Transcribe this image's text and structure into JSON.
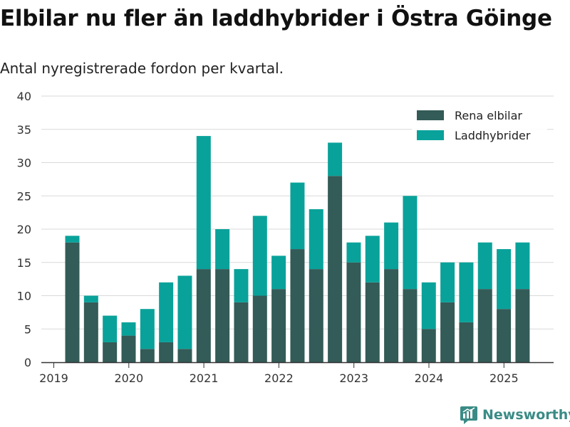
{
  "header": {
    "title": "Elbilar nu fler än laddhybrider i Östra Göinge",
    "subtitle": "Antal nyregistrerade fordon per kvartal."
  },
  "brand": {
    "name": "Newsworthy",
    "color": "#3a8b86"
  },
  "chart_data": {
    "type": "bar",
    "stacked": true,
    "categories": [
      "2019 Q2",
      "2019 Q3",
      "2019 Q4",
      "2020 Q1",
      "2020 Q2",
      "2020 Q3",
      "2020 Q4",
      "2021 Q1",
      "2021 Q2",
      "2021 Q3",
      "2021 Q4",
      "2022 Q1",
      "2022 Q2",
      "2022 Q3",
      "2022 Q4",
      "2023 Q1",
      "2023 Q2",
      "2023 Q3",
      "2023 Q4",
      "2024 Q1",
      "2024 Q2",
      "2024 Q3",
      "2024 Q4",
      "2025 Q1",
      "2025 Q2"
    ],
    "series": [
      {
        "name": "Rena elbilar",
        "color": "#335b57",
        "values": [
          18,
          9,
          3,
          4,
          2,
          3,
          2,
          14,
          14,
          9,
          10,
          11,
          17,
          14,
          28,
          15,
          12,
          14,
          11,
          5,
          9,
          6,
          11,
          8,
          11
        ]
      },
      {
        "name": "Laddhybrider",
        "color": "#09a29a",
        "values": [
          1,
          1,
          4,
          2,
          6,
          9,
          11,
          20,
          6,
          5,
          12,
          5,
          10,
          9,
          5,
          3,
          7,
          7,
          14,
          7,
          6,
          9,
          7,
          9,
          7
        ]
      }
    ],
    "x_tick_labels": [
      "2019",
      "2020",
      "2021",
      "2022",
      "2023",
      "2024",
      "2025"
    ],
    "y_tick_labels": [
      "0",
      "5",
      "10",
      "15",
      "20",
      "25",
      "30",
      "35",
      "40"
    ],
    "ylim": [
      0,
      40
    ],
    "grid": true,
    "legend_position": "top-right"
  }
}
